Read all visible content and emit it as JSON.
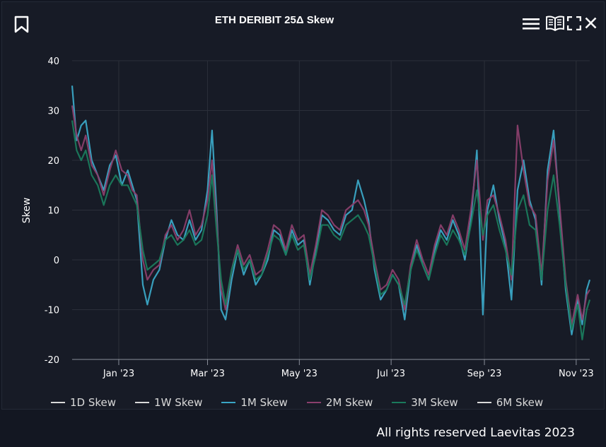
{
  "header": {
    "title": "ETH DERIBIT 25Δ Skew",
    "icons": [
      "bookmark-icon",
      "menu-icon",
      "book-icon",
      "fullscreen-icon",
      "close-icon"
    ]
  },
  "footer": {
    "text": "All rights reserved Laevitas 2023"
  },
  "colors": {
    "background": "#131722",
    "grid": "#2b2f3a",
    "1D Skew": "#d9d9d9",
    "1W Skew": "#d9d9d9",
    "1M Skew": "#3aa6c5",
    "2M Skew": "#8a3f6c",
    "3M Skew": "#1a7a5c",
    "6M Skew": "#d9d9d9"
  },
  "chart_data": {
    "type": "line",
    "title": "ETH DERIBIT 25Δ Skew",
    "xlabel": "",
    "ylabel": "Skew",
    "ylim": [
      -20,
      40
    ],
    "yticks": [
      -20,
      -10,
      0,
      10,
      20,
      30,
      40
    ],
    "xrange": [
      "2022-12-01",
      "2023-11-10"
    ],
    "xticks": [
      {
        "date": "2023-01-01",
        "label": "Jan '23"
      },
      {
        "date": "2023-03-01",
        "label": "Mar '23"
      },
      {
        "date": "2023-05-01",
        "label": "May '23"
      },
      {
        "date": "2023-07-01",
        "label": "Jul '23"
      },
      {
        "date": "2023-09-01",
        "label": "Sep '23"
      },
      {
        "date": "2023-11-01",
        "label": "Nov '23"
      }
    ],
    "grid": true,
    "legend_position": "bottom",
    "legend": [
      "1D Skew",
      "1W Skew",
      "1M Skew",
      "2M Skew",
      "3M Skew",
      "6M Skew"
    ],
    "series": [
      {
        "name": "1M Skew",
        "points": [
          [
            "2022-12-01",
            35
          ],
          [
            "2022-12-04",
            24
          ],
          [
            "2022-12-07",
            27
          ],
          [
            "2022-12-10",
            28
          ],
          [
            "2022-12-14",
            20
          ],
          [
            "2022-12-18",
            17
          ],
          [
            "2022-12-22",
            14
          ],
          [
            "2022-12-26",
            19
          ],
          [
            "2022-12-30",
            21
          ],
          [
            "2023-01-03",
            15
          ],
          [
            "2023-01-07",
            18
          ],
          [
            "2023-01-10",
            15
          ],
          [
            "2023-01-13",
            12
          ],
          [
            "2023-01-17",
            -5
          ],
          [
            "2023-01-20",
            -9
          ],
          [
            "2023-01-24",
            -4
          ],
          [
            "2023-01-28",
            -2
          ],
          [
            "2023-02-01",
            4
          ],
          [
            "2023-02-05",
            8
          ],
          [
            "2023-02-09",
            5
          ],
          [
            "2023-02-13",
            4
          ],
          [
            "2023-02-17",
            8
          ],
          [
            "2023-02-21",
            4
          ],
          [
            "2023-02-25",
            6
          ],
          [
            "2023-03-01",
            14
          ],
          [
            "2023-03-04",
            26
          ],
          [
            "2023-03-07",
            10
          ],
          [
            "2023-03-10",
            -10
          ],
          [
            "2023-03-13",
            -12
          ],
          [
            "2023-03-17",
            -4
          ],
          [
            "2023-03-21",
            2
          ],
          [
            "2023-03-25",
            -3
          ],
          [
            "2023-03-29",
            0
          ],
          [
            "2023-04-02",
            -5
          ],
          [
            "2023-04-06",
            -3
          ],
          [
            "2023-04-10",
            0
          ],
          [
            "2023-04-14",
            6
          ],
          [
            "2023-04-18",
            5
          ],
          [
            "2023-04-22",
            1
          ],
          [
            "2023-04-26",
            6
          ],
          [
            "2023-04-30",
            3
          ],
          [
            "2023-05-04",
            4
          ],
          [
            "2023-05-08",
            -5
          ],
          [
            "2023-05-12",
            2
          ],
          [
            "2023-05-16",
            9
          ],
          [
            "2023-05-20",
            8
          ],
          [
            "2023-05-24",
            6
          ],
          [
            "2023-05-28",
            5
          ],
          [
            "2023-06-01",
            9
          ],
          [
            "2023-06-05",
            10
          ],
          [
            "2023-06-09",
            16
          ],
          [
            "2023-06-13",
            12
          ],
          [
            "2023-06-16",
            8
          ],
          [
            "2023-06-20",
            -2
          ],
          [
            "2023-06-24",
            -8
          ],
          [
            "2023-06-28",
            -6
          ],
          [
            "2023-07-02",
            -3
          ],
          [
            "2023-07-06",
            -5
          ],
          [
            "2023-07-10",
            -12
          ],
          [
            "2023-07-14",
            -2
          ],
          [
            "2023-07-18",
            3
          ],
          [
            "2023-07-22",
            -1
          ],
          [
            "2023-07-26",
            -4
          ],
          [
            "2023-07-30",
            2
          ],
          [
            "2023-08-03",
            6
          ],
          [
            "2023-08-07",
            4
          ],
          [
            "2023-08-11",
            8
          ],
          [
            "2023-08-15",
            5
          ],
          [
            "2023-08-19",
            0
          ],
          [
            "2023-08-23",
            8
          ],
          [
            "2023-08-27",
            22
          ],
          [
            "2023-08-31",
            -11
          ],
          [
            "2023-09-03",
            10
          ],
          [
            "2023-09-07",
            15
          ],
          [
            "2023-09-11",
            8
          ],
          [
            "2023-09-15",
            3
          ],
          [
            "2023-09-19",
            -8
          ],
          [
            "2023-09-23",
            14
          ],
          [
            "2023-09-27",
            20
          ],
          [
            "2023-10-01",
            12
          ],
          [
            "2023-10-05",
            8
          ],
          [
            "2023-10-09",
            -5
          ],
          [
            "2023-10-13",
            18
          ],
          [
            "2023-10-17",
            26
          ],
          [
            "2023-10-21",
            10
          ],
          [
            "2023-10-25",
            -6
          ],
          [
            "2023-10-29",
            -15
          ],
          [
            "2023-11-02",
            -8
          ],
          [
            "2023-11-05",
            -13
          ],
          [
            "2023-11-08",
            -6
          ],
          [
            "2023-11-10",
            -4
          ]
        ]
      },
      {
        "name": "2M Skew",
        "points": [
          [
            "2022-12-01",
            31
          ],
          [
            "2022-12-04",
            25
          ],
          [
            "2022-12-07",
            22
          ],
          [
            "2022-12-10",
            25
          ],
          [
            "2022-12-14",
            19
          ],
          [
            "2022-12-18",
            17
          ],
          [
            "2022-12-22",
            13
          ],
          [
            "2022-12-26",
            18
          ],
          [
            "2022-12-30",
            22
          ],
          [
            "2023-01-03",
            18
          ],
          [
            "2023-01-07",
            17
          ],
          [
            "2023-01-10",
            14
          ],
          [
            "2023-01-13",
            13
          ],
          [
            "2023-01-17",
            0
          ],
          [
            "2023-01-20",
            -4
          ],
          [
            "2023-01-24",
            -2
          ],
          [
            "2023-01-28",
            -1
          ],
          [
            "2023-02-01",
            5
          ],
          [
            "2023-02-05",
            7
          ],
          [
            "2023-02-09",
            4
          ],
          [
            "2023-02-13",
            6
          ],
          [
            "2023-02-17",
            10
          ],
          [
            "2023-02-21",
            5
          ],
          [
            "2023-02-25",
            7
          ],
          [
            "2023-03-01",
            12
          ],
          [
            "2023-03-04",
            20
          ],
          [
            "2023-03-07",
            8
          ],
          [
            "2023-03-10",
            -6
          ],
          [
            "2023-03-13",
            -10
          ],
          [
            "2023-03-17",
            -2
          ],
          [
            "2023-03-21",
            3
          ],
          [
            "2023-03-25",
            -1
          ],
          [
            "2023-03-29",
            1
          ],
          [
            "2023-04-02",
            -3
          ],
          [
            "2023-04-06",
            -2
          ],
          [
            "2023-04-10",
            2
          ],
          [
            "2023-04-14",
            7
          ],
          [
            "2023-04-18",
            6
          ],
          [
            "2023-04-22",
            2
          ],
          [
            "2023-04-26",
            7
          ],
          [
            "2023-04-30",
            4
          ],
          [
            "2023-05-04",
            5
          ],
          [
            "2023-05-08",
            -3
          ],
          [
            "2023-05-12",
            3
          ],
          [
            "2023-05-16",
            10
          ],
          [
            "2023-05-20",
            9
          ],
          [
            "2023-05-24",
            7
          ],
          [
            "2023-05-28",
            6
          ],
          [
            "2023-06-01",
            10
          ],
          [
            "2023-06-05",
            11
          ],
          [
            "2023-06-09",
            12
          ],
          [
            "2023-06-13",
            10
          ],
          [
            "2023-06-16",
            7
          ],
          [
            "2023-06-20",
            0
          ],
          [
            "2023-06-24",
            -6
          ],
          [
            "2023-06-28",
            -5
          ],
          [
            "2023-07-02",
            -2
          ],
          [
            "2023-07-06",
            -4
          ],
          [
            "2023-07-10",
            -10
          ],
          [
            "2023-07-14",
            -1
          ],
          [
            "2023-07-18",
            4
          ],
          [
            "2023-07-22",
            0
          ],
          [
            "2023-07-26",
            -3
          ],
          [
            "2023-07-30",
            3
          ],
          [
            "2023-08-03",
            7
          ],
          [
            "2023-08-07",
            5
          ],
          [
            "2023-08-11",
            9
          ],
          [
            "2023-08-15",
            6
          ],
          [
            "2023-08-19",
            2
          ],
          [
            "2023-08-23",
            10
          ],
          [
            "2023-08-27",
            20
          ],
          [
            "2023-08-31",
            4
          ],
          [
            "2023-09-03",
            12
          ],
          [
            "2023-09-07",
            13
          ],
          [
            "2023-09-11",
            9
          ],
          [
            "2023-09-15",
            4
          ],
          [
            "2023-09-19",
            -4
          ],
          [
            "2023-09-23",
            27
          ],
          [
            "2023-09-27",
            18
          ],
          [
            "2023-10-01",
            11
          ],
          [
            "2023-10-05",
            9
          ],
          [
            "2023-10-09",
            -3
          ],
          [
            "2023-10-13",
            16
          ],
          [
            "2023-10-17",
            24
          ],
          [
            "2023-10-21",
            11
          ],
          [
            "2023-10-25",
            -4
          ],
          [
            "2023-10-29",
            -13
          ],
          [
            "2023-11-02",
            -7
          ],
          [
            "2023-11-05",
            -12
          ],
          [
            "2023-11-08",
            -7
          ],
          [
            "2023-11-10",
            -6
          ]
        ]
      },
      {
        "name": "3M Skew",
        "points": [
          [
            "2022-12-01",
            28
          ],
          [
            "2022-12-04",
            22
          ],
          [
            "2022-12-07",
            20
          ],
          [
            "2022-12-10",
            22
          ],
          [
            "2022-12-14",
            17
          ],
          [
            "2022-12-18",
            15
          ],
          [
            "2022-12-22",
            11
          ],
          [
            "2022-12-26",
            15
          ],
          [
            "2022-12-30",
            17
          ],
          [
            "2023-01-03",
            15
          ],
          [
            "2023-01-07",
            15
          ],
          [
            "2023-01-10",
            13
          ],
          [
            "2023-01-13",
            11
          ],
          [
            "2023-01-17",
            2
          ],
          [
            "2023-01-20",
            -2
          ],
          [
            "2023-01-24",
            -1
          ],
          [
            "2023-01-28",
            0
          ],
          [
            "2023-02-01",
            4
          ],
          [
            "2023-02-05",
            5
          ],
          [
            "2023-02-09",
            3
          ],
          [
            "2023-02-13",
            4
          ],
          [
            "2023-02-17",
            6
          ],
          [
            "2023-02-21",
            3
          ],
          [
            "2023-02-25",
            4
          ],
          [
            "2023-03-01",
            9
          ],
          [
            "2023-03-04",
            17
          ],
          [
            "2023-03-07",
            6
          ],
          [
            "2023-03-10",
            -4
          ],
          [
            "2023-03-13",
            -9
          ],
          [
            "2023-03-17",
            -2
          ],
          [
            "2023-03-21",
            2
          ],
          [
            "2023-03-25",
            -2
          ],
          [
            "2023-03-29",
            0
          ],
          [
            "2023-04-02",
            -4
          ],
          [
            "2023-04-06",
            -3
          ],
          [
            "2023-04-10",
            1
          ],
          [
            "2023-04-14",
            5
          ],
          [
            "2023-04-18",
            4
          ],
          [
            "2023-04-22",
            1
          ],
          [
            "2023-04-26",
            5
          ],
          [
            "2023-04-30",
            2
          ],
          [
            "2023-05-04",
            3
          ],
          [
            "2023-05-08",
            -4
          ],
          [
            "2023-05-12",
            1
          ],
          [
            "2023-05-16",
            7
          ],
          [
            "2023-05-20",
            7
          ],
          [
            "2023-05-24",
            5
          ],
          [
            "2023-05-28",
            4
          ],
          [
            "2023-06-01",
            7
          ],
          [
            "2023-06-05",
            8
          ],
          [
            "2023-06-09",
            9
          ],
          [
            "2023-06-13",
            7
          ],
          [
            "2023-06-16",
            5
          ],
          [
            "2023-06-20",
            -1
          ],
          [
            "2023-06-24",
            -7
          ],
          [
            "2023-06-28",
            -6
          ],
          [
            "2023-07-02",
            -3
          ],
          [
            "2023-07-06",
            -5
          ],
          [
            "2023-07-10",
            -9
          ],
          [
            "2023-07-14",
            -2
          ],
          [
            "2023-07-18",
            2
          ],
          [
            "2023-07-22",
            -1
          ],
          [
            "2023-07-26",
            -4
          ],
          [
            "2023-07-30",
            1
          ],
          [
            "2023-08-03",
            5
          ],
          [
            "2023-08-07",
            3
          ],
          [
            "2023-08-11",
            6
          ],
          [
            "2023-08-15",
            4
          ],
          [
            "2023-08-19",
            1
          ],
          [
            "2023-08-23",
            7
          ],
          [
            "2023-08-27",
            14
          ],
          [
            "2023-08-31",
            5
          ],
          [
            "2023-09-03",
            9
          ],
          [
            "2023-09-07",
            11
          ],
          [
            "2023-09-11",
            6
          ],
          [
            "2023-09-15",
            2
          ],
          [
            "2023-09-19",
            -3
          ],
          [
            "2023-09-23",
            10
          ],
          [
            "2023-09-27",
            13
          ],
          [
            "2023-10-01",
            7
          ],
          [
            "2023-10-05",
            6
          ],
          [
            "2023-10-09",
            -4
          ],
          [
            "2023-10-13",
            10
          ],
          [
            "2023-10-17",
            17
          ],
          [
            "2023-10-21",
            7
          ],
          [
            "2023-10-25",
            -5
          ],
          [
            "2023-10-29",
            -14
          ],
          [
            "2023-11-02",
            -9
          ],
          [
            "2023-11-05",
            -16
          ],
          [
            "2023-11-08",
            -10
          ],
          [
            "2023-11-10",
            -8
          ]
        ]
      }
    ]
  }
}
